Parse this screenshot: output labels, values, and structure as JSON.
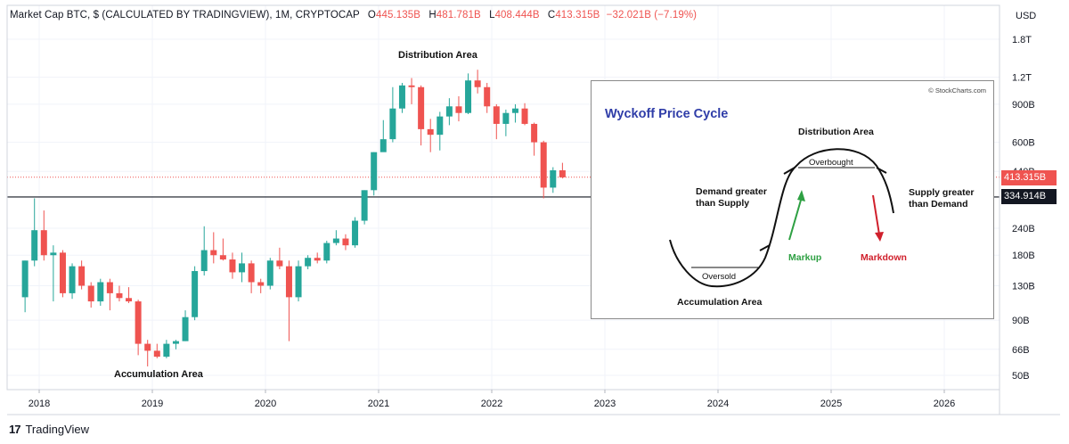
{
  "header": {
    "symbol": "Market Cap BTC, $ (CALCULATED BY TRADINGVIEW), 1M, CRYPTOCAP",
    "open_label": "O",
    "open": "445.135B",
    "high_label": "H",
    "high": "481.781B",
    "low_label": "L",
    "low": "408.444B",
    "close_label": "C",
    "close": "413.315B",
    "change": "−32.021B (−7.19%)"
  },
  "footer": {
    "brand": "TradingView",
    "logo": "17"
  },
  "price_tags": {
    "last": "413.315B",
    "line": "334.914B"
  },
  "annotations": {
    "distribution": "Distribution Area",
    "accumulation": "Accumulation Area"
  },
  "inset": {
    "copyright": "© StockCharts.com",
    "title": "Wyckoff Price Cycle",
    "distribution": "Distribution Area",
    "overbought": "Overbought",
    "oversold": "Oversold",
    "demand": "Demand greater than Supply",
    "supply": "Supply greater than Demand",
    "markup": "Markup",
    "markdown": "Markdown",
    "accumulation": "Accumulation Area"
  },
  "colors": {
    "up": "#26a69a",
    "down": "#ef5350",
    "grid": "#f0f3fa",
    "text": "#131722",
    "line": "#131722"
  },
  "chart_data": {
    "type": "candlestick",
    "title": "Market Cap BTC, $ (CALCULATED BY TRADINGVIEW), 1M, CRYPTOCAP",
    "scale": "log",
    "currency": "USD",
    "x_ticks": [
      "2018",
      "2019",
      "2020",
      "2021",
      "2022",
      "2023",
      "2024",
      "2025",
      "2026"
    ],
    "y_ticks": [
      "1.8T",
      "1.2T",
      "900B",
      "600B",
      "440B",
      "240B",
      "180B",
      "130B",
      "90B",
      "66B",
      "50B"
    ],
    "y_tick_values": [
      1800,
      1200,
      900,
      600,
      440,
      240,
      180,
      130,
      90,
      66,
      50
    ],
    "y_range_billions": [
      40,
      2600
    ],
    "horizontal_line": 334.914,
    "last_price": 413.315,
    "candles_billions": [
      {
        "t": "2017-11",
        "o": 115,
        "h": 170,
        "l": 98,
        "c": 170
      },
      {
        "t": "2017-12",
        "o": 170,
        "h": 330,
        "l": 160,
        "c": 235
      },
      {
        "t": "2018-01",
        "o": 235,
        "h": 290,
        "l": 170,
        "c": 180
      },
      {
        "t": "2018-02",
        "o": 180,
        "h": 200,
        "l": 110,
        "c": 185
      },
      {
        "t": "2018-03",
        "o": 185,
        "h": 190,
        "l": 115,
        "c": 120
      },
      {
        "t": "2018-04",
        "o": 120,
        "h": 165,
        "l": 113,
        "c": 160
      },
      {
        "t": "2018-05",
        "o": 160,
        "h": 170,
        "l": 125,
        "c": 130
      },
      {
        "t": "2018-06",
        "o": 130,
        "h": 135,
        "l": 103,
        "c": 110
      },
      {
        "t": "2018-07",
        "o": 110,
        "h": 140,
        "l": 105,
        "c": 135
      },
      {
        "t": "2018-08",
        "o": 135,
        "h": 140,
        "l": 100,
        "c": 120
      },
      {
        "t": "2018-09",
        "o": 120,
        "h": 130,
        "l": 110,
        "c": 114
      },
      {
        "t": "2018-10",
        "o": 114,
        "h": 128,
        "l": 108,
        "c": 110
      },
      {
        "t": "2018-11",
        "o": 110,
        "h": 112,
        "l": 62,
        "c": 70
      },
      {
        "t": "2018-12",
        "o": 70,
        "h": 73,
        "l": 55,
        "c": 65
      },
      {
        "t": "2019-01",
        "o": 65,
        "h": 70,
        "l": 60,
        "c": 61
      },
      {
        "t": "2019-02",
        "o": 61,
        "h": 73,
        "l": 60,
        "c": 70
      },
      {
        "t": "2019-03",
        "o": 70,
        "h": 73,
        "l": 66,
        "c": 72
      },
      {
        "t": "2019-04",
        "o": 72,
        "h": 100,
        "l": 72,
        "c": 93
      },
      {
        "t": "2019-05",
        "o": 93,
        "h": 160,
        "l": 90,
        "c": 152
      },
      {
        "t": "2019-06",
        "o": 152,
        "h": 245,
        "l": 145,
        "c": 190
      },
      {
        "t": "2019-07",
        "o": 190,
        "h": 230,
        "l": 165,
        "c": 180
      },
      {
        "t": "2019-08",
        "o": 180,
        "h": 215,
        "l": 170,
        "c": 172
      },
      {
        "t": "2019-09",
        "o": 172,
        "h": 185,
        "l": 140,
        "c": 150
      },
      {
        "t": "2019-10",
        "o": 150,
        "h": 185,
        "l": 135,
        "c": 165
      },
      {
        "t": "2019-11",
        "o": 165,
        "h": 170,
        "l": 120,
        "c": 135
      },
      {
        "t": "2019-12",
        "o": 135,
        "h": 140,
        "l": 120,
        "c": 130
      },
      {
        "t": "2020-01",
        "o": 130,
        "h": 175,
        "l": 125,
        "c": 170
      },
      {
        "t": "2020-02",
        "o": 170,
        "h": 195,
        "l": 155,
        "c": 160
      },
      {
        "t": "2020-03",
        "o": 160,
        "h": 170,
        "l": 72,
        "c": 115
      },
      {
        "t": "2020-04",
        "o": 115,
        "h": 170,
        "l": 110,
        "c": 160
      },
      {
        "t": "2020-05",
        "o": 160,
        "h": 180,
        "l": 155,
        "c": 175
      },
      {
        "t": "2020-06",
        "o": 175,
        "h": 185,
        "l": 165,
        "c": 170
      },
      {
        "t": "2020-07",
        "o": 170,
        "h": 210,
        "l": 165,
        "c": 205
      },
      {
        "t": "2020-08",
        "o": 205,
        "h": 235,
        "l": 200,
        "c": 215
      },
      {
        "t": "2020-09",
        "o": 215,
        "h": 225,
        "l": 190,
        "c": 200
      },
      {
        "t": "2020-10",
        "o": 200,
        "h": 270,
        "l": 195,
        "c": 260
      },
      {
        "t": "2020-11",
        "o": 260,
        "h": 360,
        "l": 250,
        "c": 360
      },
      {
        "t": "2020-12",
        "o": 360,
        "h": 540,
        "l": 340,
        "c": 540
      },
      {
        "t": "2021-01",
        "o": 540,
        "h": 760,
        "l": 550,
        "c": 620
      },
      {
        "t": "2021-02",
        "o": 620,
        "h": 1080,
        "l": 600,
        "c": 860
      },
      {
        "t": "2021-03",
        "o": 860,
        "h": 1130,
        "l": 820,
        "c": 1100
      },
      {
        "t": "2021-04",
        "o": 1100,
        "h": 1190,
        "l": 900,
        "c": 1080
      },
      {
        "t": "2021-05",
        "o": 1080,
        "h": 1100,
        "l": 580,
        "c": 690
      },
      {
        "t": "2021-06",
        "o": 690,
        "h": 770,
        "l": 540,
        "c": 650
      },
      {
        "t": "2021-07",
        "o": 650,
        "h": 830,
        "l": 550,
        "c": 790
      },
      {
        "t": "2021-08",
        "o": 790,
        "h": 960,
        "l": 720,
        "c": 880
      },
      {
        "t": "2021-09",
        "o": 880,
        "h": 980,
        "l": 750,
        "c": 820
      },
      {
        "t": "2021-10",
        "o": 820,
        "h": 1250,
        "l": 810,
        "c": 1160
      },
      {
        "t": "2021-11",
        "o": 1160,
        "h": 1300,
        "l": 1010,
        "c": 1080
      },
      {
        "t": "2021-12",
        "o": 1080,
        "h": 1130,
        "l": 820,
        "c": 880
      },
      {
        "t": "2022-01",
        "o": 880,
        "h": 900,
        "l": 620,
        "c": 730
      },
      {
        "t": "2022-02",
        "o": 730,
        "h": 850,
        "l": 640,
        "c": 820
      },
      {
        "t": "2022-03",
        "o": 820,
        "h": 900,
        "l": 740,
        "c": 860
      },
      {
        "t": "2022-04",
        "o": 860,
        "h": 910,
        "l": 720,
        "c": 730
      },
      {
        "t": "2022-05",
        "o": 730,
        "h": 740,
        "l": 520,
        "c": 600
      },
      {
        "t": "2022-06",
        "o": 600,
        "h": 610,
        "l": 330,
        "c": 370
      },
      {
        "t": "2022-07",
        "o": 370,
        "h": 460,
        "l": 350,
        "c": 445
      },
      {
        "t": "2022-08",
        "o": 445,
        "h": 482,
        "l": 408,
        "c": 413
      }
    ]
  }
}
